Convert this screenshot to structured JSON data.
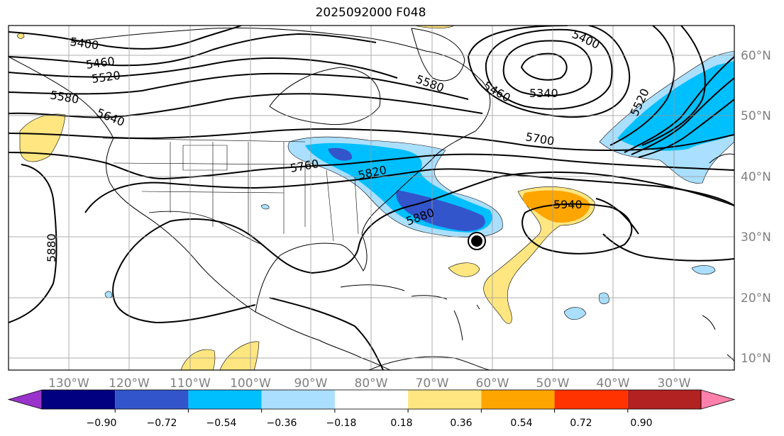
{
  "title": "2025092000 F048",
  "lon_labels": [
    "130°W",
    "120°W",
    "110°W",
    "100°W",
    "90°W",
    "80°W",
    "70°W",
    "60°W",
    "50°W",
    "40°W",
    "30°W"
  ],
  "lat_labels": [
    "60°N",
    "50°N",
    "40°N",
    "30°N",
    "20°N",
    "10°N"
  ],
  "contour_labels": [
    "5400",
    "5460",
    "5520",
    "5580",
    "5640",
    "5760",
    "5820",
    "5880",
    "5940",
    "5340",
    "5580",
    "5460",
    "5700",
    "5400",
    "5520",
    "5880"
  ],
  "colorbar": {
    "colors": [
      "#9933cc",
      "#000080",
      "#3355cc",
      "#00bfff",
      "#aadfff",
      "#ffffff",
      "#ffe680",
      "#ffa500",
      "#ff3300",
      "#b22222",
      "#ff80aa"
    ],
    "tick_labels": [
      "−0.90",
      "−0.72",
      "−0.54",
      "−0.36",
      "−0.18",
      "0.18",
      "0.36",
      "0.54",
      "0.72",
      "0.90"
    ]
  }
}
